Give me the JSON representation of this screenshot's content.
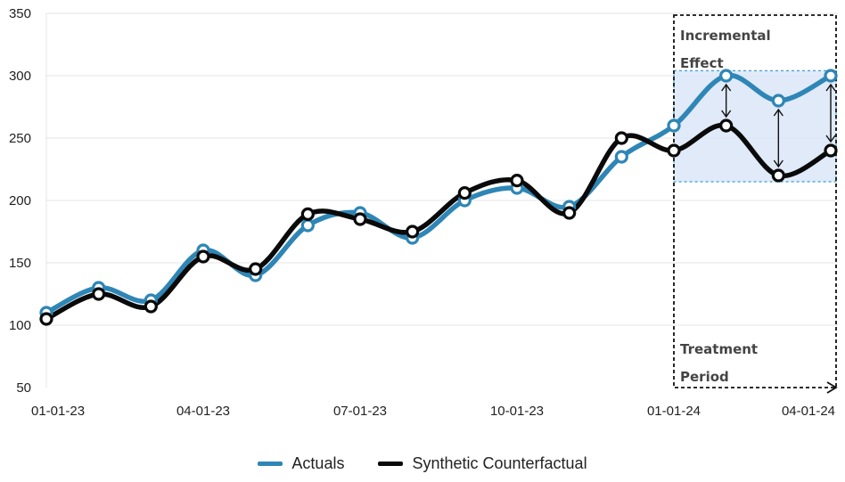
{
  "chart_data": {
    "type": "line",
    "x": [
      "01-01-23",
      "02-01-23",
      "03-01-23",
      "04-01-23",
      "05-01-23",
      "06-01-23",
      "07-01-23",
      "08-01-23",
      "09-01-23",
      "10-01-23",
      "11-01-23",
      "12-01-23",
      "01-01-24",
      "02-01-24",
      "03-01-24",
      "04-01-24"
    ],
    "xticks": [
      "01-01-23",
      "04-01-23",
      "07-01-23",
      "10-01-23",
      "01-01-24",
      "04-01-24"
    ],
    "yticks": [
      50,
      100,
      150,
      200,
      250,
      300,
      350
    ],
    "ylim": [
      50,
      350
    ],
    "series": [
      {
        "name": "Actuals",
        "color": "#2E86B6",
        "values": [
          110,
          130,
          120,
          160,
          140,
          180,
          190,
          170,
          200,
          210,
          195,
          235,
          260,
          300,
          280,
          300
        ]
      },
      {
        "name": "Synthetic Counterfactual",
        "color": "#0a0a0a",
        "values": [
          105,
          125,
          115,
          155,
          145,
          189,
          185,
          175,
          206,
          216,
          190,
          250,
          240,
          260,
          220,
          240
        ]
      }
    ],
    "annotations": {
      "incremental_effect": [
        "Incremental",
        "Effect"
      ],
      "treatment_period": [
        "Treatment",
        "Period"
      ],
      "treatment_start": "01-01-24",
      "effect_band": [
        215,
        304
      ],
      "effect_band_color": "#dbe6f7"
    },
    "grid": "horizontal",
    "legend_position": "bottom-center"
  }
}
